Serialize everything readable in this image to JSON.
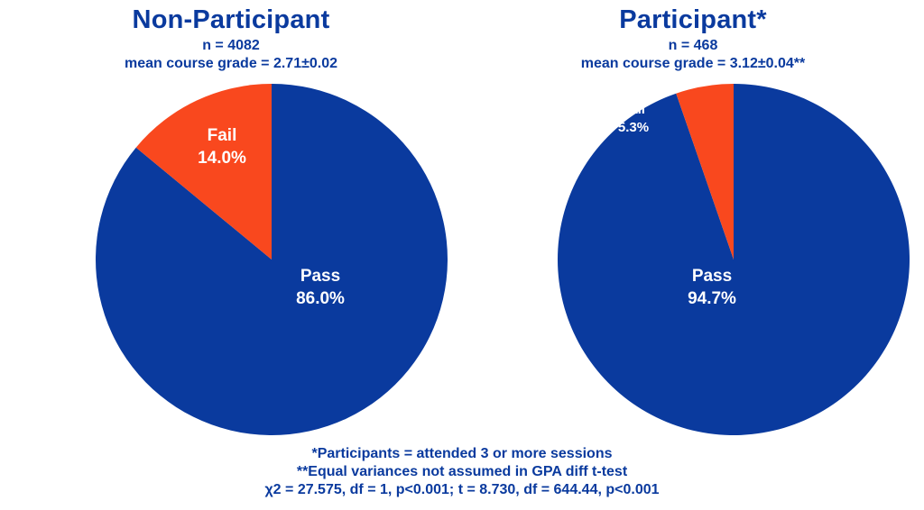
{
  "colors": {
    "pass": "#0a3a9e",
    "fail": "#f9481e",
    "text": "#0a3a9e",
    "label": "#ffffff"
  },
  "chart_data": [
    {
      "type": "pie",
      "title": "Non-Participant",
      "n_text": "n = 4082",
      "mean_text": "mean course grade =  2.71±0.02",
      "slices": [
        {
          "name": "Pass",
          "value": 86.0,
          "label": "86.0%"
        },
        {
          "name": "Fail",
          "value": 14.0,
          "label": "14.0%"
        }
      ]
    },
    {
      "type": "pie",
      "title": "Participant*",
      "n_text": "n = 468",
      "mean_text": "mean course grade =  3.12±0.04**",
      "slices": [
        {
          "name": "Pass",
          "value": 94.7,
          "label": "94.7%"
        },
        {
          "name": "Fail",
          "value": 5.3,
          "label": "5.3%"
        }
      ]
    }
  ],
  "footnotes": {
    "line1": "*Participants = attended 3 or more sessions",
    "line2": "**Equal variances not assumed in GPA diff t-test",
    "line3": "χ2 = 27.575, df = 1, p<0.001; t = 8.730, df = 644.44, p<0.001"
  }
}
